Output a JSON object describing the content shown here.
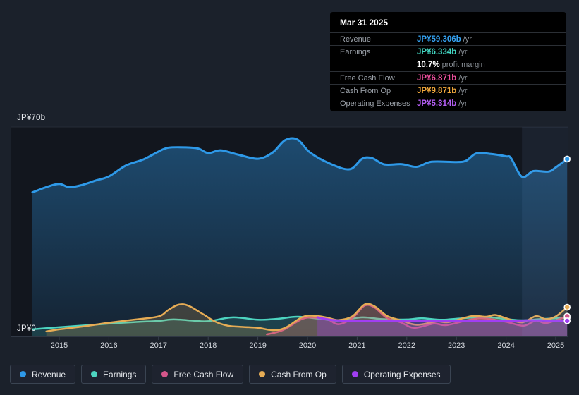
{
  "tooltip": {
    "date": "Mar 31 2025",
    "rows": [
      {
        "label": "Revenue",
        "value": "JP¥59.306b",
        "suffix": "/yr",
        "color": "#35A2F2"
      },
      {
        "label": "Earnings",
        "value": "JP¥6.334b",
        "suffix": "/yr",
        "color": "#43D9C5"
      },
      {
        "label": "Free Cash Flow",
        "value": "JP¥6.871b",
        "suffix": "/yr",
        "color": "#F0509F"
      },
      {
        "label": "Cash From Op",
        "value": "JP¥9.871b",
        "suffix": "/yr",
        "color": "#F2A93C"
      },
      {
        "label": "Operating Expenses",
        "value": "JP¥5.314b",
        "suffix": "/yr",
        "color": "#B55FF5"
      }
    ],
    "margin": {
      "pct": "10.7%",
      "text": "profit margin"
    }
  },
  "legend": {
    "items": [
      {
        "id": "revenue",
        "label": "Revenue",
        "color": "#2E99E8"
      },
      {
        "id": "earnings",
        "label": "Earnings",
        "color": "#4DD4C0"
      },
      {
        "id": "free-cash-flow",
        "label": "Free Cash Flow",
        "color": "#D4568A"
      },
      {
        "id": "cash-from-op",
        "label": "Cash From Op",
        "color": "#E6AC55"
      },
      {
        "id": "operating-expenses",
        "label": "Operating Expenses",
        "color": "#A13EF2"
      }
    ]
  },
  "chart_data": {
    "type": "area",
    "y_label_top": "JP¥70b",
    "y_label_bottom": "JP¥0",
    "ylim": [
      0,
      70
    ],
    "y_gridlines": [
      70,
      60,
      40,
      20
    ],
    "x_ticks": [
      2015,
      2016,
      2017,
      2018,
      2019,
      2020,
      2021,
      2022,
      2023,
      2024,
      2025
    ],
    "highlight_band": {
      "x_start_year": 2024.32,
      "x_end_year": 2025.25,
      "color": "rgba(140,175,240,0.08)"
    },
    "units": "JP¥ billions per year",
    "series": [
      {
        "id": "revenue",
        "name": "Revenue",
        "color": "#2E99E8",
        "width": 3,
        "fill": "gradient",
        "points": [
          [
            2014.46,
            48.2
          ],
          [
            2014.75,
            50.0
          ],
          [
            2015.0,
            51.0
          ],
          [
            2015.2,
            49.9
          ],
          [
            2015.45,
            50.6
          ],
          [
            2015.75,
            52.2
          ],
          [
            2016.0,
            53.5
          ],
          [
            2016.35,
            57.2
          ],
          [
            2016.7,
            59.2
          ],
          [
            2017.0,
            61.8
          ],
          [
            2017.2,
            63.1
          ],
          [
            2017.55,
            63.2
          ],
          [
            2017.8,
            62.8
          ],
          [
            2018.0,
            61.3
          ],
          [
            2018.25,
            62.2
          ],
          [
            2018.6,
            60.8
          ],
          [
            2019.0,
            59.4
          ],
          [
            2019.3,
            61.5
          ],
          [
            2019.55,
            65.6
          ],
          [
            2019.8,
            65.8
          ],
          [
            2020.05,
            61.5
          ],
          [
            2020.45,
            57.8
          ],
          [
            2020.85,
            55.9
          ],
          [
            2021.1,
            59.4
          ],
          [
            2021.3,
            59.6
          ],
          [
            2021.55,
            57.5
          ],
          [
            2021.9,
            57.6
          ],
          [
            2022.2,
            56.7
          ],
          [
            2022.5,
            58.4
          ],
          [
            2023.0,
            58.3
          ],
          [
            2023.2,
            58.8
          ],
          [
            2023.4,
            61.2
          ],
          [
            2023.7,
            61.0
          ],
          [
            2024.0,
            60.2
          ],
          [
            2024.1,
            59.6
          ],
          [
            2024.32,
            53.4
          ],
          [
            2024.55,
            55.3
          ],
          [
            2024.85,
            55.1
          ],
          [
            2025.0,
            56.5
          ],
          [
            2025.23,
            59.306
          ]
        ]
      },
      {
        "id": "earnings",
        "name": "Earnings",
        "color": "#4DD4C0",
        "width": 2.5,
        "fill": "rgba(77,212,192,0.16)",
        "points": [
          [
            2014.46,
            2.5
          ],
          [
            2015.0,
            3.2
          ],
          [
            2015.5,
            3.8
          ],
          [
            2016.0,
            4.4
          ],
          [
            2016.5,
            4.9
          ],
          [
            2017.0,
            5.3
          ],
          [
            2017.3,
            5.8
          ],
          [
            2017.7,
            5.4
          ],
          [
            2018.0,
            5.2
          ],
          [
            2018.5,
            6.5
          ],
          [
            2019.0,
            5.7
          ],
          [
            2019.4,
            6.0
          ],
          [
            2019.8,
            6.7
          ],
          [
            2020.3,
            5.9
          ],
          [
            2020.6,
            5.4
          ],
          [
            2021.1,
            6.5
          ],
          [
            2021.5,
            5.9
          ],
          [
            2022.0,
            5.8
          ],
          [
            2022.3,
            6.2
          ],
          [
            2022.7,
            5.7
          ],
          [
            2023.2,
            6.3
          ],
          [
            2023.6,
            6.6
          ],
          [
            2024.0,
            5.9
          ],
          [
            2024.35,
            5.5
          ],
          [
            2024.7,
            5.9
          ],
          [
            2025.23,
            6.334
          ]
        ]
      },
      {
        "id": "free-cash-flow",
        "name": "Free Cash Flow",
        "color": "#D4568A",
        "width": 2.5,
        "fill": "rgba(212,86,138,0.20)",
        "points": [
          [
            2019.18,
            0.8
          ],
          [
            2019.5,
            2.2
          ],
          [
            2019.9,
            6.0
          ],
          [
            2020.15,
            6.4
          ],
          [
            2020.4,
            5.9
          ],
          [
            2020.62,
            4.2
          ],
          [
            2020.9,
            6.2
          ],
          [
            2021.15,
            10.4
          ],
          [
            2021.35,
            9.8
          ],
          [
            2021.6,
            6.3
          ],
          [
            2021.88,
            4.8
          ],
          [
            2022.15,
            3.0
          ],
          [
            2022.55,
            4.4
          ],
          [
            2022.8,
            3.9
          ],
          [
            2023.3,
            5.8
          ],
          [
            2023.6,
            6.1
          ],
          [
            2024.0,
            5.0
          ],
          [
            2024.35,
            3.7
          ],
          [
            2024.6,
            5.4
          ],
          [
            2024.82,
            4.6
          ],
          [
            2025.23,
            6.871
          ]
        ]
      },
      {
        "id": "cash-from-op",
        "name": "Cash From Op",
        "color": "#E6AC55",
        "width": 2.5,
        "fill": "rgba(230,172,85,0.20)",
        "points": [
          [
            2014.74,
            1.8
          ],
          [
            2015.0,
            2.5
          ],
          [
            2015.5,
            3.5
          ],
          [
            2016.0,
            4.7
          ],
          [
            2016.5,
            5.7
          ],
          [
            2017.0,
            6.8
          ],
          [
            2017.2,
            9.0
          ],
          [
            2017.4,
            10.7
          ],
          [
            2017.6,
            10.4
          ],
          [
            2017.9,
            7.5
          ],
          [
            2018.15,
            5.0
          ],
          [
            2018.4,
            3.7
          ],
          [
            2018.7,
            3.3
          ],
          [
            2019.0,
            3.0
          ],
          [
            2019.3,
            2.2
          ],
          [
            2019.55,
            3.0
          ],
          [
            2019.9,
            6.6
          ],
          [
            2020.15,
            7.0
          ],
          [
            2020.4,
            6.4
          ],
          [
            2020.62,
            5.6
          ],
          [
            2020.9,
            6.8
          ],
          [
            2021.15,
            10.8
          ],
          [
            2021.35,
            10.2
          ],
          [
            2021.6,
            7.0
          ],
          [
            2021.88,
            5.5
          ],
          [
            2022.2,
            4.0
          ],
          [
            2022.6,
            5.1
          ],
          [
            2022.85,
            4.9
          ],
          [
            2023.3,
            6.9
          ],
          [
            2023.6,
            6.7
          ],
          [
            2023.78,
            7.3
          ],
          [
            2024.0,
            6.2
          ],
          [
            2024.32,
            4.8
          ],
          [
            2024.6,
            6.9
          ],
          [
            2024.8,
            5.9
          ],
          [
            2025.0,
            6.8
          ],
          [
            2025.23,
            9.871
          ]
        ]
      },
      {
        "id": "operating-expenses",
        "name": "Operating Expenses",
        "color": "#A13EF2",
        "width": 3,
        "fill": "rgba(161,62,242,0.30)",
        "points": [
          [
            2020.2,
            6.5
          ],
          [
            2020.5,
            5.6
          ],
          [
            2021.0,
            5.3
          ],
          [
            2021.5,
            5.25
          ],
          [
            2022.0,
            5.2
          ],
          [
            2022.5,
            5.3
          ],
          [
            2023.0,
            5.4
          ],
          [
            2023.5,
            5.35
          ],
          [
            2024.0,
            5.3
          ],
          [
            2024.5,
            5.5
          ],
          [
            2024.9,
            5.4
          ],
          [
            2025.23,
            5.314
          ]
        ]
      }
    ]
  }
}
